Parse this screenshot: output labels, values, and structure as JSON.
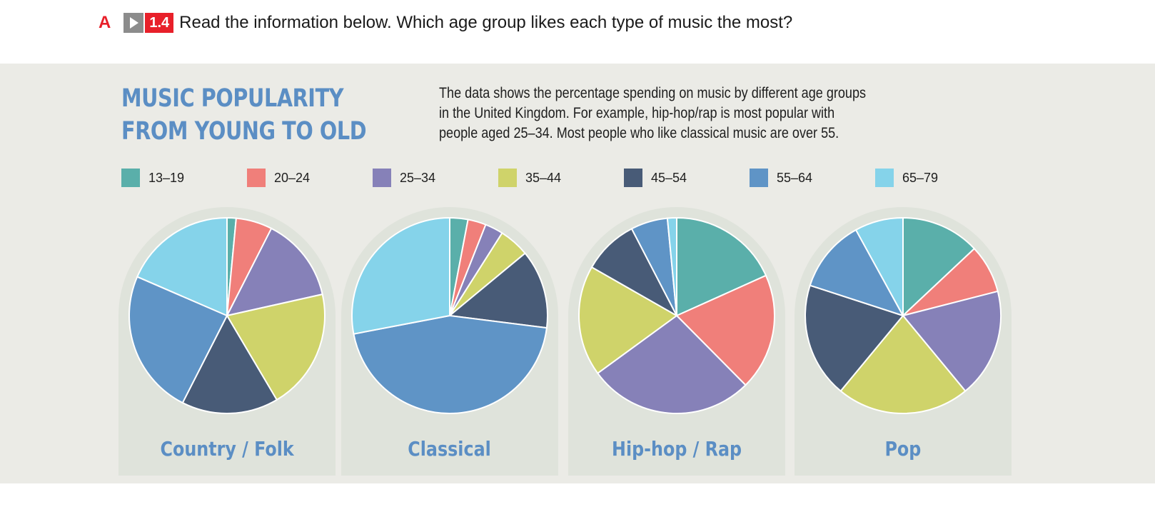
{
  "exercise": {
    "letter": "A",
    "track": "1.4",
    "instruction": "Read the information below. Which age group likes each type of music the most?"
  },
  "infographic": {
    "title_line1": "MUSIC POPULARITY",
    "title_line2": "FROM YOUNG TO OLD",
    "description_line1": "The data shows the percentage spending on music by different age groups",
    "description_line2": "in the United Kingdom. For example, hip-hop/rap is most popular with",
    "description_line3": "people aged 25–34. Most people who like classical music are over 55."
  },
  "chart_data": {
    "type": "pie",
    "legend_position": "top",
    "categories": [
      "13–19",
      "20–24",
      "25–34",
      "35–44",
      "45–54",
      "55–64",
      "65–79"
    ],
    "colors": [
      "#5aafaa",
      "#f07f7a",
      "#8681b8",
      "#cfd36a",
      "#485b77",
      "#5f94c6",
      "#85d3ea"
    ],
    "charts": [
      {
        "title": "Country / Folk",
        "values": [
          1.5,
          6,
          14,
          20,
          16,
          24,
          18.5
        ]
      },
      {
        "title": "Classical",
        "values": [
          3,
          3,
          3,
          5,
          13,
          45,
          28
        ]
      },
      {
        "title": "Hip-hop / Rap",
        "values": [
          18,
          19,
          27,
          18,
          9,
          6,
          1.5
        ]
      },
      {
        "title": "Pop",
        "values": [
          13,
          8,
          18,
          22,
          19,
          12,
          8
        ]
      }
    ]
  }
}
